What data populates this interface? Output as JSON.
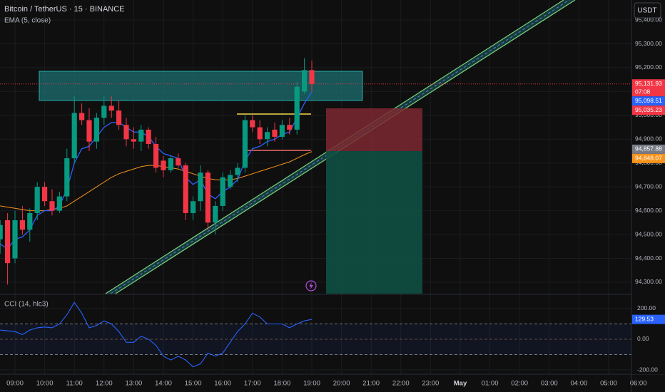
{
  "chart_data": {
    "type": "candlestick",
    "title": "Bitcoin / TetherUS · 15 · BINANCE",
    "currency": "USDT",
    "up_color": "#089981",
    "down_color": "#f23645",
    "x": [
      "08:30",
      "08:45",
      "09:00",
      "09:15",
      "09:30",
      "09:45",
      "10:00",
      "10:15",
      "10:30",
      "10:45",
      "11:00",
      "11:15",
      "11:30",
      "11:45",
      "12:00",
      "12:15",
      "12:30",
      "12:45",
      "13:00",
      "13:15",
      "13:30",
      "13:45",
      "14:00",
      "14:15",
      "14:30",
      "14:45",
      "15:00",
      "15:15",
      "15:30",
      "15:45",
      "16:00",
      "16:15",
      "16:30",
      "16:45",
      "17:00",
      "17:15",
      "17:30",
      "17:45",
      "18:00",
      "18:15",
      "18:30",
      "18:45",
      "19:00"
    ],
    "open": [
      94480,
      94560,
      94400,
      94560,
      94520,
      94590,
      94700,
      94640,
      94600,
      94660,
      94820,
      95010,
      94980,
      94890,
      94990,
      95040,
      95020,
      94960,
      94900,
      94890,
      94940,
      94880,
      94810,
      94770,
      94820,
      94790,
      94590,
      94640,
      94760,
      94550,
      94620,
      94700,
      94750,
      94780,
      94980,
      94950,
      94900,
      94940,
      94910,
      94960,
      94940,
      95100,
      95190
    ],
    "high": [
      94560,
      94590,
      94600,
      94620,
      94610,
      94720,
      94720,
      94690,
      94680,
      94860,
      95080,
      95050,
      95030,
      95010,
      95080,
      95080,
      95060,
      94990,
      94950,
      94960,
      94950,
      94910,
      94830,
      94830,
      94840,
      94800,
      94660,
      94790,
      94770,
      94640,
      94760,
      94770,
      94800,
      95000,
      95000,
      94980,
      94950,
      94970,
      94980,
      94990,
      95140,
      95240,
      95230
    ],
    "low": [
      94420,
      94290,
      94380,
      94500,
      94470,
      94560,
      94620,
      94580,
      94590,
      94640,
      94800,
      94960,
      94850,
      94860,
      94960,
      94990,
      94940,
      94870,
      94860,
      94850,
      94860,
      94760,
      94740,
      94760,
      94780,
      94560,
      94560,
      94600,
      94520,
      94500,
      94600,
      94690,
      94720,
      94760,
      94930,
      94880,
      94870,
      94890,
      94900,
      94920,
      94920,
      95090,
      95100
    ],
    "close": [
      94540,
      94380,
      94560,
      94520,
      94590,
      94700,
      94640,
      94600,
      94660,
      94820,
      95010,
      94980,
      94890,
      94990,
      95040,
      95020,
      94960,
      94900,
      94890,
      94940,
      94880,
      94780,
      94770,
      94820,
      94790,
      94590,
      94640,
      94760,
      94550,
      94620,
      94740,
      94750,
      94780,
      94980,
      94950,
      94900,
      94930,
      94910,
      94960,
      94940,
      95120,
      95190,
      95131.93
    ],
    "series": [
      {
        "name": "EMA (5, close)",
        "color": "#2962ff",
        "values": [
          94460,
          94440,
          94480,
          94490,
          94520,
          94580,
          94600,
          94600,
          94620,
          94690,
          94800,
          94860,
          94870,
          94910,
          94950,
          94970,
          94970,
          94950,
          94930,
          94930,
          94910,
          94870,
          94840,
          94830,
          94820,
          94740,
          94710,
          94730,
          94670,
          94650,
          94680,
          94700,
          94730,
          94810,
          94860,
          94870,
          94890,
          94900,
          94920,
          94930,
          94990,
          95050,
          95098.51
        ]
      }
    ],
    "slow_line": {
      "color": "#f7931a",
      "values": [
        94620,
        94615,
        94610,
        94605,
        94600,
        94600,
        94600,
        94605,
        94610,
        94620,
        94640,
        94660,
        94680,
        94700,
        94720,
        94740,
        94755,
        94765,
        94775,
        94785,
        94790,
        94790,
        94785,
        94780,
        94775,
        94765,
        94755,
        94745,
        94735,
        94730,
        94728,
        94730,
        94735,
        94745,
        94755,
        94765,
        94775,
        94785,
        94795,
        94805,
        94820,
        94835,
        94848.07
      ]
    },
    "ylim": [
      94252,
      95484
    ],
    "yticks": [
      {
        "value": 95400,
        "label": "95,400.00"
      },
      {
        "value": 95300,
        "label": "95,300.00"
      },
      {
        "value": 95200,
        "label": "95,200.00"
      },
      {
        "value": 95100,
        "label": "95,100.00"
      },
      {
        "value": 95000,
        "label": "95,000.00"
      },
      {
        "value": 94900,
        "label": "94,900.00"
      },
      {
        "value": 94800,
        "label": "94,800.00"
      },
      {
        "value": 94700,
        "label": "94,700.00"
      },
      {
        "value": 94600,
        "label": "94,600.00"
      },
      {
        "value": 94500,
        "label": "94,500.00"
      },
      {
        "value": 94400,
        "label": "94,400.00"
      },
      {
        "value": 94300,
        "label": "94,300.00"
      }
    ],
    "xticks": [
      "09:00",
      "10:00",
      "11:00",
      "12:00",
      "13:00",
      "14:00",
      "15:00",
      "16:00",
      "17:00",
      "18:00",
      "19:00",
      "20:00",
      "21:00",
      "22:00",
      "23:00",
      "May",
      "01:00",
      "02:00",
      "03:00",
      "04:00",
      "05:00",
      "06:00"
    ],
    "grid": true,
    "price_tags": [
      {
        "value": 95131.93,
        "label": "95,131.93",
        "color": "#f23645"
      },
      {
        "value": 95098.51,
        "label": "95,098.51",
        "color": "#2962ff"
      },
      {
        "value": 95035.23,
        "label": "95,035.23",
        "color": "#f23645"
      },
      {
        "value": 94857.88,
        "label": "94,857.88",
        "color": "#787b86"
      },
      {
        "value": 94848.07,
        "label": "94,848.07",
        "color": "#f7931a"
      }
    ],
    "countdown": "07:08",
    "cci": {
      "name": "CCI (14, hlc3)",
      "color": "#2962ff",
      "values": [
        60,
        55,
        50,
        30,
        60,
        75,
        80,
        75,
        100,
        160,
        240,
        170,
        75,
        90,
        120,
        100,
        50,
        -20,
        -20,
        20,
        0,
        -40,
        -110,
        -135,
        -110,
        -135,
        -180,
        -160,
        -90,
        -110,
        -90,
        -20,
        50,
        100,
        170,
        145,
        100,
        100,
        100,
        75,
        100,
        120,
        129.53
      ],
      "ylim": [
        -223,
        288
      ],
      "yticks": [
        {
          "value": 200,
          "label": "200.00"
        },
        {
          "value": 0,
          "label": "0.00"
        },
        {
          "value": -200,
          "label": "-200.00"
        }
      ],
      "bands": [
        100,
        -100
      ],
      "tag": {
        "value": 129.53,
        "label": "129.53"
      }
    }
  }
}
